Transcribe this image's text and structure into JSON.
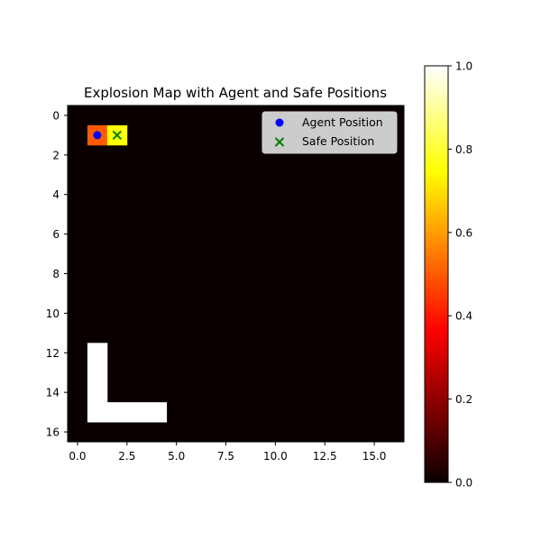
{
  "chart_data": {
    "type": "heatmap",
    "title": "Explosion Map with Agent and Safe Positions",
    "xlabel": "",
    "ylabel": "",
    "colormap": "hot",
    "grid_size": [
      17,
      17
    ],
    "xlim": [
      -0.5,
      16.5
    ],
    "ylim": [
      16.5,
      -0.5
    ],
    "x_ticks": [
      0,
      2.5,
      5,
      7.5,
      10,
      12.5,
      15
    ],
    "x_tick_labels": [
      "0.0",
      "2.5",
      "5.0",
      "7.5",
      "10.0",
      "12.5",
      "15.0"
    ],
    "y_ticks": [
      0,
      2,
      4,
      6,
      8,
      10,
      12,
      14,
      16
    ],
    "y_tick_labels": [
      "0",
      "2",
      "4",
      "6",
      "8",
      "10",
      "12",
      "14",
      "16"
    ],
    "background_value": 0.0,
    "cells": [
      {
        "row": 1,
        "col": 1,
        "value": 0.5
      },
      {
        "row": 1,
        "col": 2,
        "value": 0.75
      },
      {
        "row": 12,
        "col": 1,
        "value": 1.0
      },
      {
        "row": 13,
        "col": 1,
        "value": 1.0
      },
      {
        "row": 14,
        "col": 1,
        "value": 1.0
      },
      {
        "row": 15,
        "col": 1,
        "value": 1.0
      },
      {
        "row": 15,
        "col": 2,
        "value": 1.0
      },
      {
        "row": 15,
        "col": 3,
        "value": 1.0
      },
      {
        "row": 15,
        "col": 4,
        "value": 1.0
      }
    ],
    "series": [
      {
        "name": "Agent Position",
        "type": "scatter",
        "marker": "circle",
        "color": "#0000ff",
        "x": [
          1
        ],
        "y": [
          1
        ]
      },
      {
        "name": "Safe Position",
        "type": "scatter",
        "marker": "x",
        "color": "#008000",
        "x": [
          2
        ],
        "y": [
          1
        ]
      }
    ],
    "legend": {
      "placement": "top-right"
    },
    "colorbar": {
      "range": [
        0.0,
        1.0
      ],
      "ticks": [
        0.0,
        0.2,
        0.4,
        0.6,
        0.8,
        1.0
      ],
      "tick_labels": [
        "0.0",
        "0.2",
        "0.4",
        "0.6",
        "0.8",
        "1.0"
      ]
    }
  }
}
